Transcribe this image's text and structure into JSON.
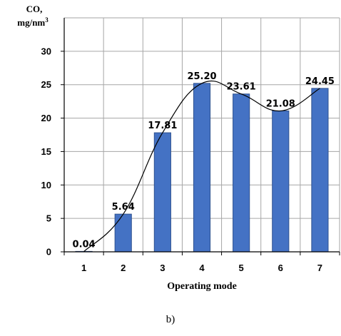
{
  "chart_data": {
    "type": "bar",
    "ylabel_line1": "CO,",
    "ylabel_line2": "mg/nm",
    "ylabel_sup": "3",
    "xlabel": "Operating mode",
    "categories": [
      "1",
      "2",
      "3",
      "4",
      "5",
      "6",
      "7"
    ],
    "values": [
      0.04,
      5.64,
      17.81,
      25.2,
      23.61,
      21.08,
      24.45
    ],
    "data_labels": [
      "0.04",
      "5.64",
      "17.81",
      "25.20",
      "23.61",
      "21.08",
      "24.45"
    ],
    "ylim": [
      0,
      35
    ],
    "yticks": [
      0,
      5,
      10,
      15,
      20,
      25,
      30
    ],
    "grid": true,
    "trendline": true,
    "bar_color": "#4472c4",
    "bar_edge_color": "#2f528f"
  },
  "caption": "b)"
}
